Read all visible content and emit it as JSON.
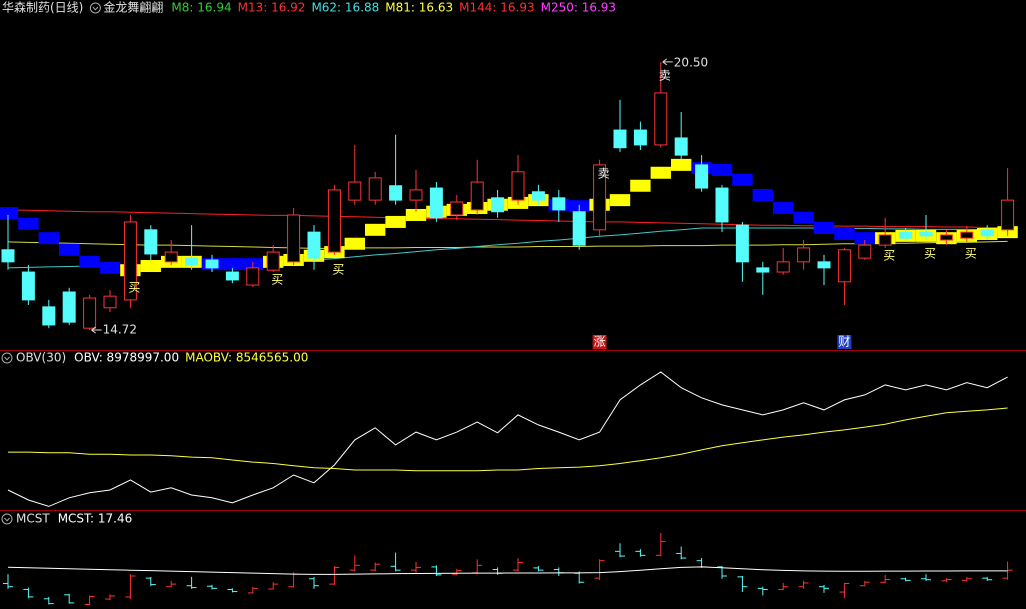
{
  "chart_data": [
    {
      "type": "candlestick",
      "title": "华森制药(日线)",
      "subtitle": "金龙舞翩翩",
      "legend": [
        {
          "text": "M8: 16.94",
          "color": "#33cc33"
        },
        {
          "text": "M13: 16.92",
          "color": "#ff3030"
        },
        {
          "text": "M62: 16.88",
          "color": "#40e0e0"
        },
        {
          "text": "M81: 16.63",
          "color": "#ffff40"
        },
        {
          "text": "M144: 16.93",
          "color": "#ff3030"
        },
        {
          "text": "M250: 16.93",
          "color": "#ff40ff"
        }
      ],
      "ylim": [
        14.29,
        21.51
      ],
      "open": [
        16.45,
        15.97,
        15.22,
        15.54,
        14.76,
        15.2,
        15.37,
        16.88,
        16.19,
        16.27,
        16.23,
        15.97,
        15.69,
        16.01,
        16.19,
        16.83,
        16.4,
        17.52,
        17.52,
        17.83,
        17.52,
        17.78,
        17.2,
        17.31,
        17.57,
        17.52,
        17.7,
        17.57,
        17.27,
        16.88,
        19.03,
        19.03,
        18.71,
        18.86,
        18.28,
        17.78,
        16.98,
        16.06,
        15.97,
        16.19,
        16.19,
        15.76,
        16.27,
        16.55,
        16.83,
        16.83,
        16.66,
        16.7,
        16.88,
        16.88
      ],
      "high": [
        17.2,
        16.12,
        15.37,
        15.63,
        15.48,
        15.58,
        17.2,
        16.98,
        16.66,
        16.98,
        16.34,
        16.06,
        16.19,
        16.55,
        17.35,
        16.98,
        17.85,
        18.71,
        18.13,
        18.93,
        18.17,
        17.91,
        17.63,
        18.39,
        17.74,
        18.49,
        17.85,
        17.74,
        17.42,
        18.39,
        19.68,
        19.21,
        20.5,
        19.42,
        18.49,
        17.85,
        17.05,
        16.19,
        16.49,
        16.66,
        16.34,
        16.49,
        16.66,
        17.14,
        16.92,
        17.2,
        16.88,
        16.96,
        16.98,
        18.21
      ],
      "low": [
        16.02,
        15.26,
        14.76,
        14.83,
        14.72,
        15.11,
        15.2,
        16.23,
        16.12,
        16.02,
        15.97,
        15.73,
        15.65,
        15.97,
        16.12,
        16.02,
        16.34,
        17.42,
        17.42,
        17.42,
        17.27,
        17.05,
        17.09,
        17.2,
        17.14,
        17.42,
        17.42,
        17.05,
        16.45,
        16.72,
        18.56,
        18.6,
        18.65,
        18.39,
        17.7,
        16.83,
        15.76,
        15.48,
        15.91,
        16.02,
        15.69,
        15.26,
        16.23,
        16.49,
        16.62,
        16.66,
        16.55,
        16.62,
        16.66,
        16.75
      ],
      "close": [
        16.19,
        15.37,
        14.83,
        14.89,
        15.41,
        15.45,
        17.05,
        16.36,
        16.4,
        16.12,
        16.06,
        15.8,
        16.06,
        16.4,
        17.2,
        16.27,
        17.74,
        17.91,
        18.0,
        17.52,
        17.74,
        17.14,
        17.48,
        17.91,
        17.27,
        18.13,
        17.52,
        17.31,
        16.55,
        18.28,
        18.65,
        18.71,
        19.83,
        18.49,
        17.78,
        17.05,
        16.19,
        15.97,
        16.19,
        16.49,
        16.06,
        16.45,
        16.55,
        16.77,
        16.7,
        16.75,
        16.77,
        16.83,
        16.75,
        17.52
      ],
      "up_color": "#ff3232",
      "down_color": "#54fcfc",
      "series": [
        {
          "color": "#ff2020",
          "values": [
            17.31,
            17.3,
            17.29,
            17.28,
            17.27,
            17.27,
            17.26,
            17.25,
            17.24,
            17.23,
            17.22,
            17.21,
            17.2,
            17.19,
            17.19,
            17.18,
            17.17,
            17.16,
            17.15,
            17.14,
            17.13,
            17.12,
            17.12,
            17.11,
            17.1,
            17.09,
            17.08,
            17.07,
            17.06,
            17.05,
            17.05,
            17.04,
            17.03,
            17.02,
            17.01,
            17.0,
            16.99,
            16.98,
            16.98,
            16.97,
            16.97,
            16.96,
            16.96,
            16.95,
            16.95,
            16.95,
            16.94,
            16.94,
            16.93,
            16.93
          ]
        },
        {
          "color": "#d8d840",
          "values": [
            16.62,
            16.61,
            16.6,
            16.59,
            16.58,
            16.57,
            16.56,
            16.55,
            16.55,
            16.54,
            16.53,
            16.52,
            16.51,
            16.5,
            16.49,
            16.48,
            16.48,
            16.49,
            16.49,
            16.49,
            16.5,
            16.5,
            16.5,
            16.51,
            16.51,
            16.51,
            16.52,
            16.52,
            16.52,
            16.53,
            16.53,
            16.53,
            16.54,
            16.54,
            16.54,
            16.55,
            16.55,
            16.55,
            16.56,
            16.56,
            16.57,
            16.58,
            16.58,
            16.59,
            16.59,
            16.6,
            16.61,
            16.61,
            16.62,
            16.63
          ]
        },
        {
          "color": "#40c8c8",
          "values": [
            16.06,
            16.07,
            16.08,
            16.09,
            16.1,
            16.11,
            16.11,
            16.12,
            16.13,
            16.14,
            16.15,
            16.16,
            16.17,
            16.18,
            16.19,
            16.23,
            16.26,
            16.3,
            16.34,
            16.37,
            16.41,
            16.45,
            16.48,
            16.52,
            16.56,
            16.59,
            16.63,
            16.66,
            16.7,
            16.74,
            16.77,
            16.81,
            16.85,
            16.88,
            16.92,
            16.92,
            16.92,
            16.92,
            16.92,
            16.92,
            16.92,
            16.91,
            16.91,
            16.9,
            16.9,
            16.89,
            16.89,
            16.89,
            16.88,
            16.88
          ]
        }
      ],
      "ribbon": {
        "values": [
          17.24,
          17.01,
          16.7,
          16.45,
          16.19,
          16.06,
          16.01,
          16.1,
          16.19,
          16.19,
          16.14,
          16.14,
          16.14,
          16.19,
          16.23,
          16.32,
          16.4,
          16.58,
          16.88,
          17.05,
          17.2,
          17.27,
          17.31,
          17.35,
          17.42,
          17.46,
          17.52,
          17.42,
          17.39,
          17.42,
          17.52,
          17.83,
          18.11,
          18.28,
          18.21,
          18.17,
          17.96,
          17.63,
          17.35,
          17.14,
          16.92,
          16.79,
          16.7,
          16.7,
          16.75,
          16.75,
          16.7,
          16.75,
          16.79,
          16.83
        ],
        "colors": [
          "#0000ff",
          "#0000ff",
          "#0000ff",
          "#0000ff",
          "#0000ff",
          "#0000ff",
          "#ffff00",
          "#ffff00",
          "#ffff00",
          "#ffff00",
          "#0000ff",
          "#0000ff",
          "#0000ff",
          "#ffff00",
          "#ffff00",
          "#ffff00",
          "#ffff00",
          "#ffff00",
          "#ffff00",
          "#ffff00",
          "#ffff00",
          "#ffff00",
          "#ffff00",
          "#ffff00",
          "#ffff00",
          "#ffff00",
          "#ffff00",
          "#0000ff",
          "#0000ff",
          "#ffff00",
          "#ffff00",
          "#ffff00",
          "#ffff00",
          "#ffff00",
          "#0000ff",
          "#0000ff",
          "#0000ff",
          "#0000ff",
          "#0000ff",
          "#0000ff",
          "#0000ff",
          "#0000ff",
          "#0000ff",
          "#ffff00",
          "#ffff00",
          "#ffff00",
          "#ffff00",
          "#ffff00",
          "#ffff00",
          "#ffff00"
        ]
      },
      "signals": [
        null,
        null,
        null,
        null,
        null,
        null,
        "买",
        null,
        null,
        null,
        null,
        null,
        null,
        "买",
        null,
        null,
        "买",
        null,
        null,
        null,
        null,
        null,
        null,
        null,
        null,
        null,
        null,
        null,
        null,
        "卖",
        null,
        null,
        "卖",
        null,
        null,
        null,
        null,
        null,
        null,
        null,
        null,
        null,
        null,
        "买",
        null,
        "买",
        null,
        "买",
        null,
        null
      ],
      "events": [
        null,
        null,
        null,
        null,
        null,
        null,
        null,
        null,
        null,
        null,
        null,
        null,
        null,
        null,
        null,
        null,
        null,
        null,
        null,
        null,
        null,
        null,
        null,
        null,
        null,
        null,
        null,
        null,
        null,
        {
          "label": "涨",
          "color": "#c01818"
        },
        null,
        null,
        null,
        null,
        null,
        null,
        null,
        null,
        null,
        null,
        null,
        {
          "label": "财",
          "color": "#2040c0"
        },
        null,
        null,
        null,
        null,
        null,
        null,
        null,
        null
      ],
      "annotations": [
        {
          "value": 20.5,
          "label": "20.50",
          "at": "high"
        },
        {
          "value": 14.72,
          "label": "14.72",
          "at": "low"
        }
      ]
    },
    {
      "type": "line",
      "title": "OBV(30)",
      "legend": [
        {
          "text": "OBV: 8978997.00",
          "color": "#ffffff"
        },
        {
          "text": "MAOBV: 8546565.00",
          "color": "#ffff40"
        }
      ],
      "ylim": [
        7120000,
        9330000
      ],
      "series": [
        {
          "color": "#ffffff",
          "values": [
            7400000,
            7260000,
            7170000,
            7290000,
            7360000,
            7400000,
            7540000,
            7370000,
            7430000,
            7330000,
            7290000,
            7220000,
            7330000,
            7430000,
            7610000,
            7500000,
            7750000,
            8100000,
            8270000,
            8030000,
            8210000,
            8100000,
            8210000,
            8350000,
            8200000,
            8450000,
            8310000,
            8210000,
            8100000,
            8210000,
            8660000,
            8870000,
            9050000,
            8830000,
            8690000,
            8590000,
            8520000,
            8450000,
            8520000,
            8620000,
            8520000,
            8660000,
            8730000,
            8870000,
            8800000,
            8870000,
            8800000,
            8900000,
            8830000,
            8978997
          ]
        },
        {
          "color": "#ffff40",
          "values": [
            7930000,
            7930000,
            7920000,
            7920000,
            7900000,
            7900000,
            7890000,
            7890000,
            7880000,
            7860000,
            7850000,
            7820000,
            7790000,
            7770000,
            7740000,
            7710000,
            7700000,
            7680000,
            7680000,
            7680000,
            7670000,
            7670000,
            7670000,
            7670000,
            7680000,
            7680000,
            7700000,
            7710000,
            7720000,
            7740000,
            7770000,
            7810000,
            7850000,
            7900000,
            7960000,
            8020000,
            8060000,
            8100000,
            8140000,
            8170000,
            8210000,
            8240000,
            8280000,
            8320000,
            8380000,
            8430000,
            8480000,
            8500000,
            8520000,
            8546565
          ]
        }
      ]
    },
    {
      "type": "ohlc_line",
      "title": "MCST",
      "legend": [
        {
          "text": "MCST: 17.46",
          "color": "#ffffff"
        }
      ],
      "ylim": [
        14.4,
        22.19
      ],
      "series": [
        {
          "color": "#ffffff",
          "values": [
            17.75,
            17.72,
            17.68,
            17.64,
            17.6,
            17.56,
            17.52,
            17.48,
            17.44,
            17.4,
            17.36,
            17.32,
            17.28,
            17.24,
            17.2,
            17.18,
            17.18,
            17.2,
            17.22,
            17.24,
            17.25,
            17.26,
            17.27,
            17.28,
            17.28,
            17.29,
            17.29,
            17.3,
            17.3,
            17.32,
            17.4,
            17.52,
            17.64,
            17.74,
            17.78,
            17.72,
            17.64,
            17.56,
            17.5,
            17.46,
            17.44,
            17.43,
            17.43,
            17.44,
            17.44,
            17.45,
            17.45,
            17.46,
            17.46,
            17.46
          ]
        }
      ]
    }
  ]
}
